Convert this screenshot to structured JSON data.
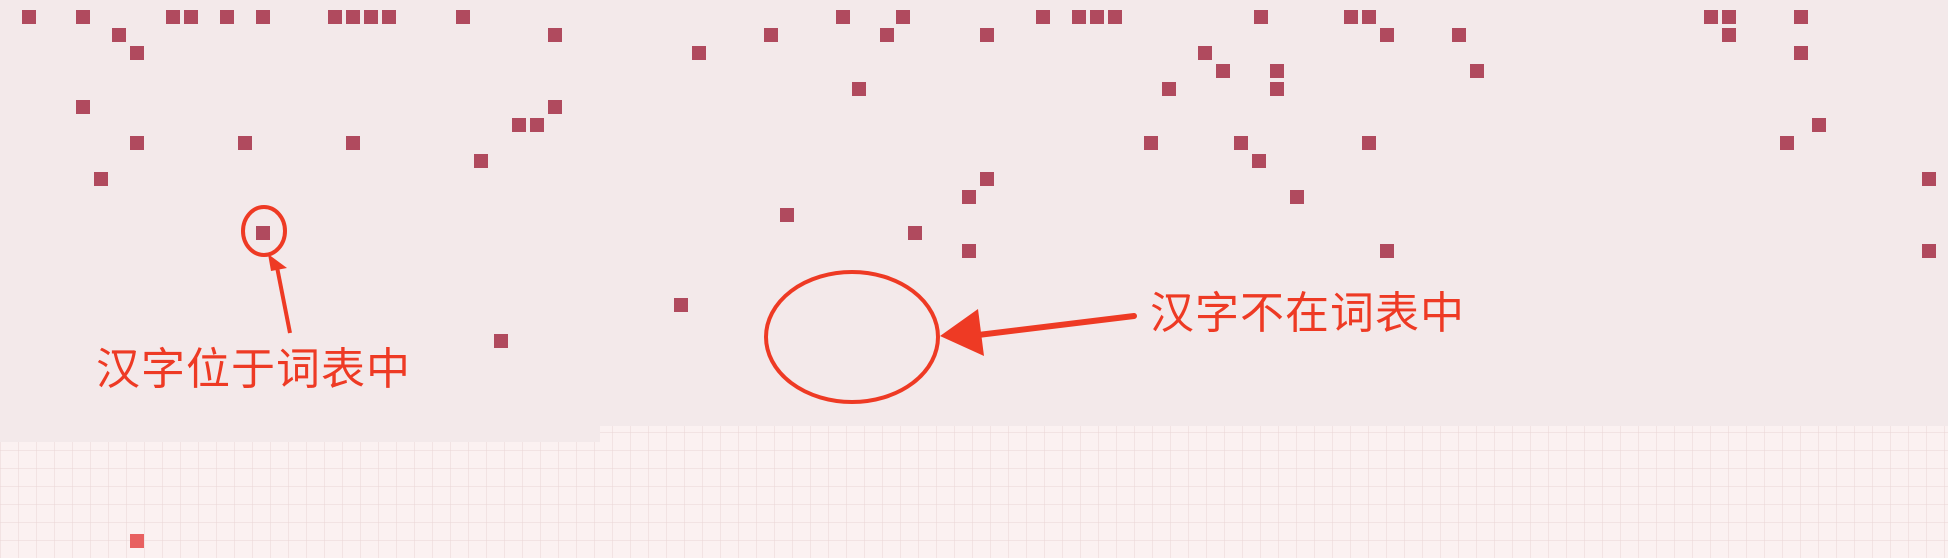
{
  "labels": {
    "in_vocab": "汉字位于词表中",
    "not_in_vocab": "汉字不在词表中"
  },
  "colors": {
    "token_square": "#b04a5e",
    "highlight_square": "#e86060",
    "annotation": "#ee3a24",
    "panel": "#f3e9ea",
    "grid": "#fbf1f1"
  }
}
